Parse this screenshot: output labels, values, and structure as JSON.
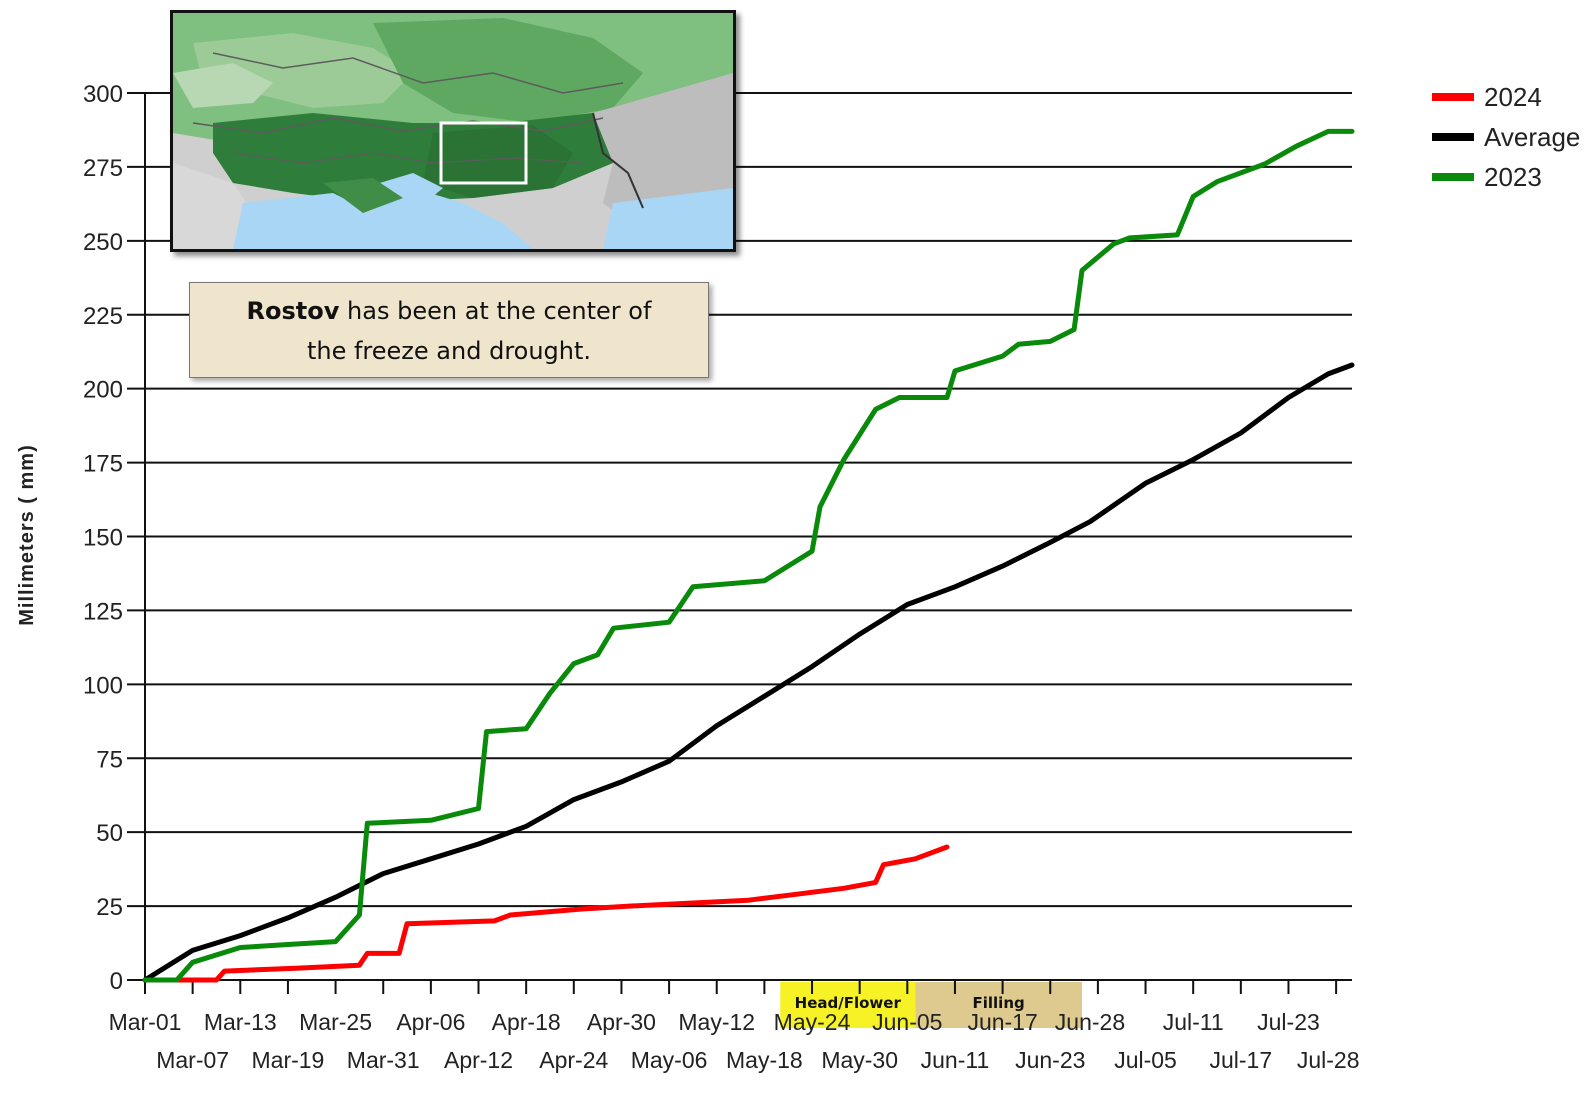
{
  "chart_data": {
    "type": "line",
    "title": "",
    "xlabel": "",
    "ylabel": "Millimeters ( mm)",
    "ylim": [
      0,
      300
    ],
    "yticks": [
      0,
      25,
      50,
      75,
      100,
      125,
      150,
      175,
      200,
      225,
      250,
      275,
      300
    ],
    "x_start": "Mar-01",
    "x_end": "Jul-31",
    "xtick_labels_top": [
      "Mar-01",
      "Mar-13",
      "Mar-25",
      "Apr-06",
      "Apr-18",
      "Apr-30",
      "May-12",
      "May-24",
      "Jun-05",
      "Jun-17",
      "Jun-28",
      "Jul-11",
      "Jul-23"
    ],
    "xtick_labels_bottom": [
      "Mar-07",
      "Mar-19",
      "Mar-31",
      "Apr-12",
      "Apr-24",
      "May-06",
      "May-18",
      "May-30",
      "Jun-11",
      "Jun-23",
      "Jul-05",
      "Jul-17",
      "Jul-28"
    ],
    "grid": "horizontal",
    "legend_position": "top-right",
    "stages": [
      {
        "label": "Head/Flower",
        "start": "May-20",
        "end": "Jun-06",
        "color": "#f5f000"
      },
      {
        "label": "Filling",
        "start": "Jun-06",
        "end": "Jun-27",
        "color": "#d8bf7a"
      }
    ],
    "series": [
      {
        "name": "2024",
        "color": "#ff0000",
        "points": [
          [
            "Mar-01",
            0
          ],
          [
            "Mar-10",
            0
          ],
          [
            "Mar-11",
            3
          ],
          [
            "Mar-20",
            4
          ],
          [
            "Mar-28",
            5
          ],
          [
            "Mar-29",
            9
          ],
          [
            "Apr-02",
            9
          ],
          [
            "Apr-03",
            19
          ],
          [
            "Apr-14",
            20
          ],
          [
            "Apr-16",
            22
          ],
          [
            "Apr-25",
            24
          ],
          [
            "May-01",
            25
          ],
          [
            "May-16",
            27
          ],
          [
            "May-22",
            29
          ],
          [
            "May-28",
            31
          ],
          [
            "Jun-01",
            33
          ],
          [
            "Jun-02",
            39
          ],
          [
            "Jun-06",
            41
          ],
          [
            "Jun-10",
            45
          ]
        ]
      },
      {
        "name": "Average",
        "color": "#000000",
        "points": [
          [
            "Mar-01",
            0
          ],
          [
            "Mar-07",
            10
          ],
          [
            "Mar-13",
            15
          ],
          [
            "Mar-19",
            21
          ],
          [
            "Mar-25",
            28
          ],
          [
            "Mar-31",
            36
          ],
          [
            "Apr-06",
            41
          ],
          [
            "Apr-12",
            46
          ],
          [
            "Apr-18",
            52
          ],
          [
            "Apr-24",
            61
          ],
          [
            "Apr-30",
            67
          ],
          [
            "May-06",
            74
          ],
          [
            "May-12",
            86
          ],
          [
            "May-18",
            96
          ],
          [
            "May-24",
            106
          ],
          [
            "May-30",
            117
          ],
          [
            "Jun-05",
            127
          ],
          [
            "Jun-11",
            133
          ],
          [
            "Jun-17",
            140
          ],
          [
            "Jun-23",
            148
          ],
          [
            "Jun-28",
            155
          ],
          [
            "Jul-05",
            168
          ],
          [
            "Jul-11",
            176
          ],
          [
            "Jul-17",
            185
          ],
          [
            "Jul-23",
            197
          ],
          [
            "Jul-28",
            205
          ],
          [
            "Jul-31",
            208
          ]
        ]
      },
      {
        "name": "2023",
        "color": "#0a8a0a",
        "points": [
          [
            "Mar-01",
            0
          ],
          [
            "Mar-05",
            0
          ],
          [
            "Mar-07",
            6
          ],
          [
            "Mar-13",
            11
          ],
          [
            "Mar-19",
            12
          ],
          [
            "Mar-25",
            13
          ],
          [
            "Mar-28",
            22
          ],
          [
            "Mar-29",
            53
          ],
          [
            "Apr-06",
            54
          ],
          [
            "Apr-12",
            58
          ],
          [
            "Apr-13",
            84
          ],
          [
            "Apr-18",
            85
          ],
          [
            "Apr-21",
            97
          ],
          [
            "Apr-24",
            107
          ],
          [
            "Apr-27",
            110
          ],
          [
            "Apr-29",
            119
          ],
          [
            "May-06",
            121
          ],
          [
            "May-09",
            133
          ],
          [
            "May-18",
            135
          ],
          [
            "May-24",
            145
          ],
          [
            "May-25",
            160
          ],
          [
            "May-28",
            176
          ],
          [
            "Jun-01",
            193
          ],
          [
            "Jun-04",
            197
          ],
          [
            "Jun-10",
            197
          ],
          [
            "Jun-11",
            206
          ],
          [
            "Jun-17",
            211
          ],
          [
            "Jun-19",
            215
          ],
          [
            "Jun-23",
            216
          ],
          [
            "Jun-26",
            220
          ],
          [
            "Jun-27",
            240
          ],
          [
            "Jul-01",
            249
          ],
          [
            "Jul-03",
            251
          ],
          [
            "Jul-09",
            252
          ],
          [
            "Jul-11",
            265
          ],
          [
            "Jul-14",
            270
          ],
          [
            "Jul-20",
            276
          ],
          [
            "Jul-24",
            282
          ],
          [
            "Jul-28",
            287
          ],
          [
            "Jul-31",
            287
          ]
        ]
      }
    ]
  },
  "callout": {
    "bold": "Rostov",
    "text_line1": " has been at the center of",
    "text_line2": "the freeze and drought."
  },
  "colors": {
    "map_green_dark": "#2f7d3b",
    "map_green_light": "#9ccb97",
    "map_grey": "#bdbdbd",
    "map_water": "#a9d6f5",
    "callout_fill": "#eee5cc"
  }
}
